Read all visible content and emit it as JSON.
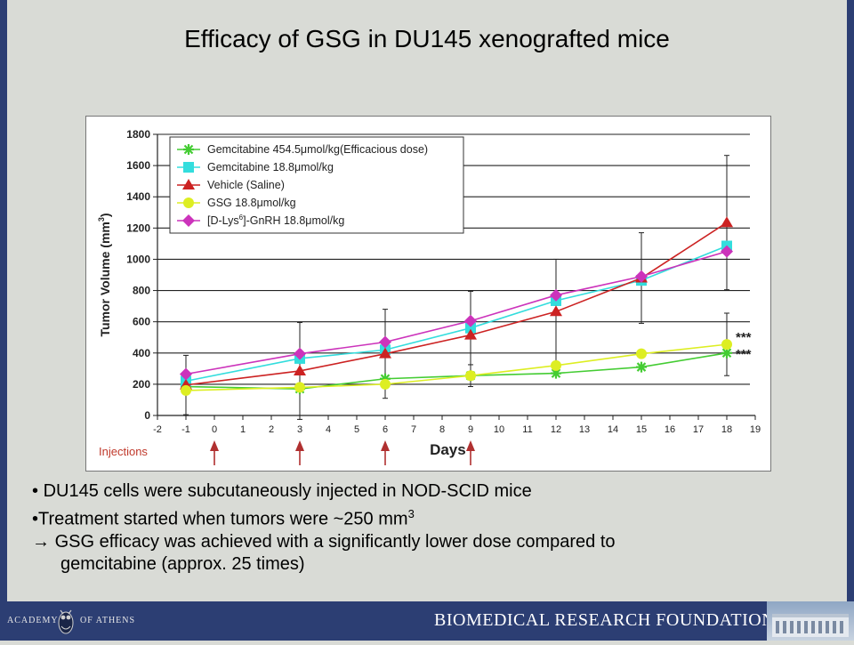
{
  "slide": {
    "title": "Efficacy of GSG in DU145 xenografted mice",
    "bullet1": "DU145 cells were subcutaneously injected in NOD-SCID mice",
    "bullet2_pre": "Treatment started when tumors were ~250 mm",
    "bullet2_sup": "3",
    "bullet3_line1": "GSG efficacy was achieved with a significantly lower dose compared to",
    "bullet3_line2": "gemcitabine (approx. 25 times)",
    "bullet_dot": "•",
    "arrow_glyph": "→"
  },
  "footer": {
    "academy_left": "ACADEMY",
    "academy_right": "OF ATHENS",
    "foundation": "BIOMEDICAL RESEARCH FOUNDATION"
  },
  "chart_data": {
    "type": "line",
    "ylabel_main": "Tumor Volume (mm",
    "ylabel_sup": "3",
    "ylabel_close": ")",
    "xlabel": "Days",
    "xlim": [
      -2,
      19
    ],
    "ylim": [
      0,
      1800
    ],
    "x_ticks": [
      -2,
      -1,
      0,
      1,
      2,
      3,
      4,
      5,
      6,
      7,
      8,
      9,
      10,
      11,
      12,
      13,
      14,
      15,
      16,
      17,
      18,
      19
    ],
    "y_ticks": [
      0,
      200,
      400,
      600,
      800,
      1000,
      1200,
      1400,
      1600,
      1800
    ],
    "grid": "horizontal",
    "legend_placement": "top-left",
    "injections_label": "Injections",
    "injection_days": [
      0,
      3,
      6,
      9
    ],
    "significance": [
      {
        "text": "***",
        "series": "GSG 18.8μmol/kg",
        "x": 18,
        "y": 460
      },
      {
        "text": "***",
        "series": "Gemcitabine 454.5μmol/kg(Efficacious dose)",
        "x": 18,
        "y": 400
      }
    ],
    "x": [
      -1,
      3,
      6,
      9,
      12,
      15,
      18
    ],
    "series": [
      {
        "name": "Gemcitabine 454.5μmol/kg(Efficacious dose)",
        "name_parts": [
          "Gemcitabine 454.5μmol/kg(Efficacious dose)"
        ],
        "color": "#44cc33",
        "marker": "star",
        "values": [
          185,
          170,
          235,
          255,
          270,
          310,
          400
        ],
        "errors": [
          0,
          0,
          0,
          0,
          0,
          0,
          0
        ]
      },
      {
        "name": "Gemcitabine 18.8μmol/kg",
        "name_parts": [
          "Gemcitabine 18.8μmol/kg"
        ],
        "color": "#33dddd",
        "marker": "square",
        "values": [
          220,
          365,
          420,
          560,
          735,
          865,
          1085
        ],
        "errors": [
          0,
          0,
          0,
          0,
          0,
          0,
          0
        ]
      },
      {
        "name": "Vehicle (Saline)",
        "name_parts": [
          "Vehicle (Saline)"
        ],
        "color": "#cc2222",
        "marker": "triangle",
        "values": [
          195,
          285,
          395,
          515,
          665,
          880,
          1235
        ],
        "errors": [
          190,
          310,
          285,
          280,
          335,
          290,
          430
        ]
      },
      {
        "name": "GSG 18.8μmol/kg",
        "name_parts": [
          "GSG 18.8μmol/kg"
        ],
        "color": "#ddee22",
        "marker": "circle",
        "values": [
          160,
          180,
          200,
          255,
          320,
          395,
          455
        ],
        "errors": [
          0,
          0,
          0,
          70,
          0,
          0,
          200
        ]
      },
      {
        "name": "[D-Lys6]-GnRH 18.8μmol/kg",
        "name_parts": [
          "[D-Lys",
          "6",
          "]-GnRH 18.8μmol/kg"
        ],
        "color": "#cc33bb",
        "marker": "diamond",
        "values": [
          265,
          395,
          470,
          605,
          770,
          890,
          1050
        ],
        "errors": [
          0,
          0,
          0,
          0,
          0,
          0,
          0
        ]
      }
    ]
  }
}
